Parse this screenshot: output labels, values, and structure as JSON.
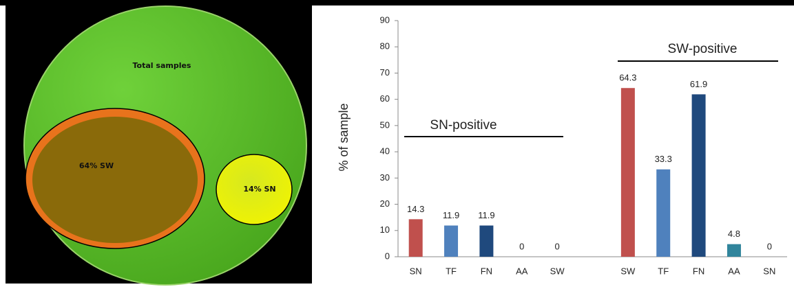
{
  "diagram": {
    "outer_label": "Total samples",
    "left_label": "64% SW",
    "right_label": "14% SN"
  },
  "chart_data": {
    "type": "bar",
    "ylabel": "% of sample",
    "categories": [
      "SN",
      "TF",
      "FN",
      "AA",
      "SW",
      null,
      "SW",
      "TF",
      "FN",
      "AA",
      "SN"
    ],
    "values": [
      14.3,
      11.9,
      11.9,
      0,
      0,
      null,
      64.3,
      33.3,
      61.9,
      4.8,
      0
    ],
    "colors": [
      "#c0504d",
      "#4f81bd",
      "#1f497d",
      "#31859c",
      "#c0504d",
      null,
      "#c0504d",
      "#4f81bd",
      "#1f497d",
      "#31859c",
      "#c0504d"
    ],
    "ylim": [
      0,
      90
    ],
    "yticks": [
      0,
      10,
      20,
      30,
      40,
      50,
      60,
      70,
      80,
      90
    ],
    "grid": false,
    "annotations": [
      "SN-positive",
      "SW-positive"
    ]
  }
}
